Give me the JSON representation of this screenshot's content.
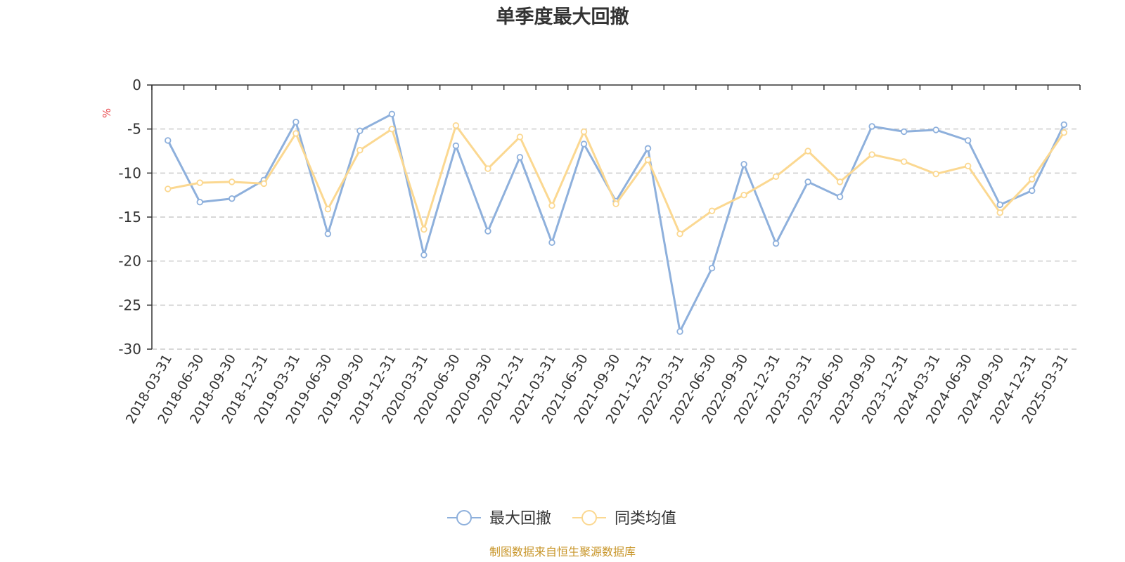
{
  "chart_data": {
    "type": "line",
    "title": "单季度最大回撤",
    "ylabel": "%",
    "ylim": [
      -30,
      0
    ],
    "yticks": [
      0,
      -5,
      -10,
      -15,
      -20,
      -25,
      -30
    ],
    "grid": true,
    "legend_position": "bottom-center",
    "categories": [
      "2018-03-31",
      "2018-06-30",
      "2018-09-30",
      "2018-12-31",
      "2019-03-31",
      "2019-06-30",
      "2019-09-30",
      "2019-12-31",
      "2020-03-31",
      "2020-06-30",
      "2020-09-30",
      "2020-12-31",
      "2021-03-31",
      "2021-06-30",
      "2021-09-30",
      "2021-12-31",
      "2022-03-31",
      "2022-06-30",
      "2022-09-30",
      "2022-12-31",
      "2023-03-31",
      "2023-06-30",
      "2023-09-30",
      "2023-12-31",
      "2024-03-31",
      "2024-06-30",
      "2024-09-30",
      "2024-12-31",
      "2025-03-31"
    ],
    "series": [
      {
        "name": "最大回撤",
        "color": "#8eb0dc",
        "values": [
          -6.3,
          -13.3,
          -12.9,
          -10.8,
          -4.2,
          -16.9,
          -5.2,
          -3.3,
          -19.3,
          -6.9,
          -16.6,
          -8.2,
          -17.9,
          -6.7,
          -13.2,
          -7.2,
          -28.0,
          -20.8,
          -9.0,
          -18.0,
          -11.0,
          -12.7,
          -4.7,
          -5.3,
          -5.1,
          -6.3,
          -13.6,
          -12.0,
          -4.5
        ]
      },
      {
        "name": "同类均值",
        "color": "#fbd891",
        "values": [
          -11.8,
          -11.1,
          -11.0,
          -11.2,
          -5.5,
          -14.1,
          -7.4,
          -5.0,
          -16.4,
          -4.6,
          -9.5,
          -5.9,
          -13.7,
          -5.3,
          -13.5,
          -8.5,
          -16.9,
          -14.3,
          -12.5,
          -10.4,
          -7.5,
          -11.0,
          -7.9,
          -8.7,
          -10.1,
          -9.2,
          -14.5,
          -10.7,
          -5.4
        ]
      }
    ],
    "source": "制图数据来自恒生聚源数据库",
    "colors": {
      "axis": "#333333",
      "grid": "#cccccc",
      "unit": "#e8464a",
      "source": "#c8962a",
      "point_fill": "#ffffff"
    }
  }
}
